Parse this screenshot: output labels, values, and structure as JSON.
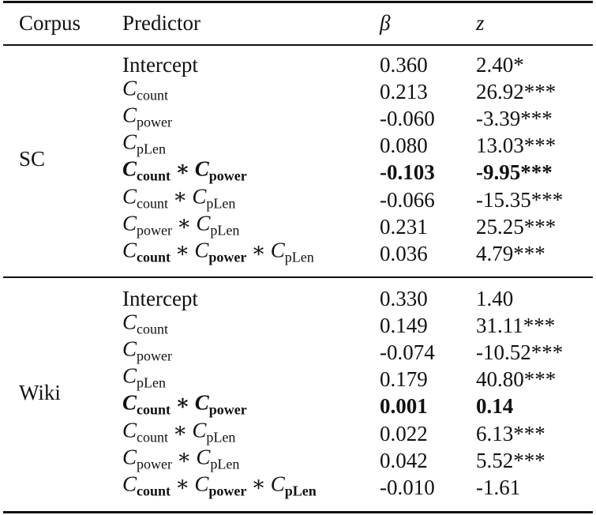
{
  "table": {
    "header": [
      "Corpus",
      "Predictor",
      "β",
      "z"
    ],
    "groups": [
      {
        "corpus": "SC",
        "rows": [
          {
            "predictor": {
              "text": "Intercept"
            },
            "beta": "0.360",
            "z": "2.40*"
          },
          {
            "predictor": {
              "terms": [
                {
                  "symbol": "C",
                  "subscript": "count"
                }
              ]
            },
            "beta": "0.213",
            "z": "26.92***"
          },
          {
            "predictor": {
              "terms": [
                {
                  "symbol": "C",
                  "subscript": "power"
                }
              ]
            },
            "beta": "-0.060",
            "z": "-3.39***"
          },
          {
            "predictor": {
              "terms": [
                {
                  "symbol": "C",
                  "subscript": "pLen"
                }
              ]
            },
            "beta": "0.080",
            "z": "13.03***"
          },
          {
            "bold": true,
            "predictor": {
              "operator": "∗",
              "terms": [
                {
                  "symbol": "C",
                  "subscript": "count"
                },
                {
                  "symbol": "C",
                  "subscript": "power"
                }
              ]
            },
            "beta": "-0.103",
            "z": "-9.95***"
          },
          {
            "predictor": {
              "operator": "∗",
              "terms": [
                {
                  "symbol": "C",
                  "subscript": "count"
                },
                {
                  "symbol": "C",
                  "subscript": "pLen"
                }
              ]
            },
            "beta": "-0.066",
            "z": "-15.35***"
          },
          {
            "predictor": {
              "operator": "∗",
              "terms": [
                {
                  "symbol": "C",
                  "subscript": "power"
                },
                {
                  "symbol": "C",
                  "subscript": "pLen"
                }
              ]
            },
            "beta": "0.231",
            "z": "25.25***"
          },
          {
            "predictor": {
              "operator": "∗",
              "terms": [
                {
                  "symbol": "C",
                  "subscript": "count",
                  "sub_bold": true
                },
                {
                  "symbol": "C",
                  "subscript": "power",
                  "sub_bold": true
                },
                {
                  "symbol": "C",
                  "subscript": "pLen"
                }
              ]
            },
            "beta": "0.036",
            "z": "4.79***"
          }
        ]
      },
      {
        "corpus": "Wiki",
        "rows": [
          {
            "predictor": {
              "text": "Intercept"
            },
            "beta": "0.330",
            "z": "1.40"
          },
          {
            "predictor": {
              "terms": [
                {
                  "symbol": "C",
                  "subscript": "count"
                }
              ]
            },
            "beta": "0.149",
            "z": "31.11***"
          },
          {
            "predictor": {
              "terms": [
                {
                  "symbol": "C",
                  "subscript": "power"
                }
              ]
            },
            "beta": "-0.074",
            "z": "-10.52***"
          },
          {
            "predictor": {
              "terms": [
                {
                  "symbol": "C",
                  "subscript": "pLen"
                }
              ]
            },
            "beta": "0.179",
            "z": "40.80***"
          },
          {
            "bold": true,
            "predictor": {
              "operator": "∗",
              "terms": [
                {
                  "symbol": "C",
                  "subscript": "count"
                },
                {
                  "symbol": "C",
                  "subscript": "power"
                }
              ]
            },
            "beta": "0.001",
            "z": "0.14"
          },
          {
            "predictor": {
              "operator": "∗",
              "terms": [
                {
                  "symbol": "C",
                  "subscript": "count"
                },
                {
                  "symbol": "C",
                  "subscript": "pLen"
                }
              ]
            },
            "beta": "0.022",
            "z": "6.13***"
          },
          {
            "predictor": {
              "operator": "∗",
              "terms": [
                {
                  "symbol": "C",
                  "subscript": "power"
                },
                {
                  "symbol": "C",
                  "subscript": "pLen"
                }
              ]
            },
            "beta": "0.042",
            "z": "5.52***"
          },
          {
            "predictor": {
              "operator": "∗",
              "terms": [
                {
                  "symbol": "C",
                  "subscript": "count",
                  "sub_bold": true
                },
                {
                  "symbol": "C",
                  "subscript": "power",
                  "sub_bold": true
                },
                {
                  "symbol": "C",
                  "subscript": "pLen",
                  "sub_bold": true
                }
              ]
            },
            "beta": "-0.010",
            "z": "-1.61"
          }
        ]
      }
    ]
  }
}
